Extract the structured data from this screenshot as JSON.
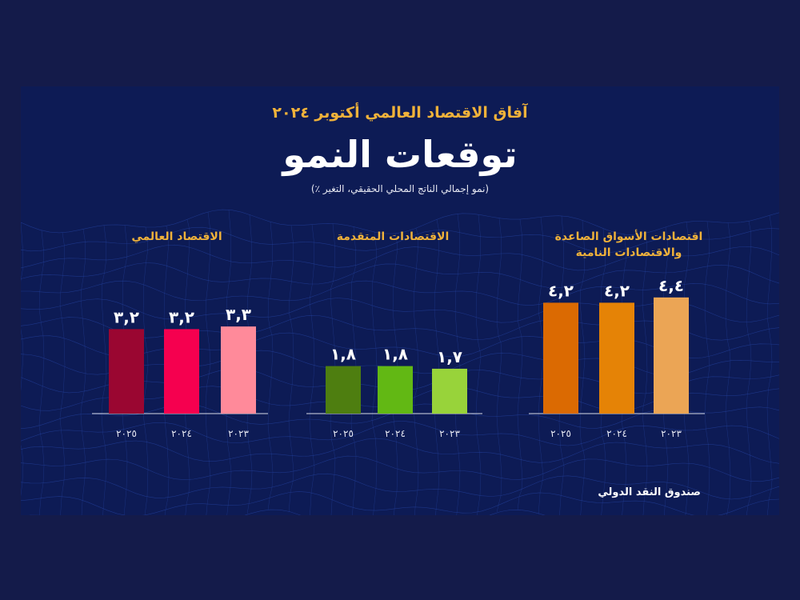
{
  "header": {
    "supertitle": "آفاق الاقتصاد العالمي أكتوبر ٢٠٢٤",
    "title": "توقعات  النمو",
    "subtitle": "(نمو إجمالي الناتج المحلي الحقيقي، التغير ٪)"
  },
  "source": "صندوق النقد الدولي",
  "colors": {
    "background": "#141b4a",
    "card": "#0d1b55",
    "accent": "#f0b23a",
    "mesh": "#2a4bb0"
  },
  "chart_data": [
    {
      "type": "bar",
      "title": "الاقتصاد العالمي",
      "categories": [
        "٢٠٢٣",
        "٢٠٢٤",
        "٢٠٢٥"
      ],
      "values": [
        3.3,
        3.2,
        3.2
      ],
      "value_labels": [
        "٣,٣",
        "٣,٢",
        "٣,٢"
      ],
      "colors": [
        "#ff8a9a",
        "#f5004f",
        "#9a0631"
      ],
      "order": "right-to-left"
    },
    {
      "type": "bar",
      "title": "الاقتصادات المتقدمة",
      "categories": [
        "٢٠٢٣",
        "٢٠٢٤",
        "٢٠٢٥"
      ],
      "values": [
        1.7,
        1.8,
        1.8
      ],
      "value_labels": [
        "١,٧",
        "١,٨",
        "١,٨"
      ],
      "colors": [
        "#98d33a",
        "#62b814",
        "#4e7e10"
      ],
      "order": "right-to-left"
    },
    {
      "type": "bar",
      "title": "اقتصادات الأسواق الصاعدة والاقتصادات النامية",
      "categories": [
        "٢٠٢٣",
        "٢٠٢٤",
        "٢٠٢٥"
      ],
      "values": [
        4.4,
        4.2,
        4.2
      ],
      "value_labels": [
        "٤,٤",
        "٤,٢",
        "٤,٢"
      ],
      "colors": [
        "#eba555",
        "#e58306",
        "#db6a02"
      ],
      "order": "right-to-left"
    }
  ]
}
